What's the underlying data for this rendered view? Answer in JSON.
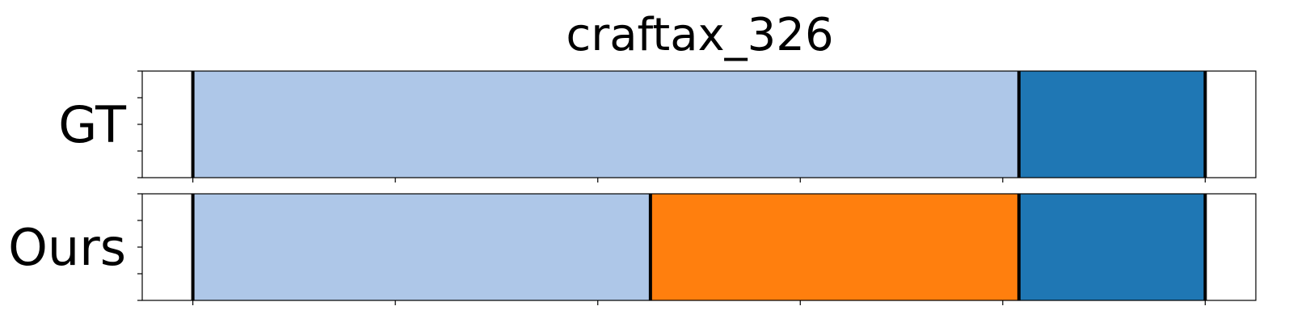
{
  "chart_data": {
    "type": "segmentation-timeline",
    "title": "craftax_326",
    "xlim": [
      0,
      5.5
    ],
    "xticks": [
      0.25,
      1.25,
      2.25,
      3.25,
      4.25,
      5.25
    ],
    "show_tick_labels": false,
    "grid": false,
    "legend": "none",
    "rows": [
      {
        "label": "GT",
        "segments": [
          {
            "start": 0.25,
            "end": 4.33,
            "color": "#aec7e8"
          },
          {
            "start": 4.33,
            "end": 5.25,
            "color": "#1f77b4"
          }
        ],
        "boundaries": [
          0.25,
          4.33,
          5.25
        ]
      },
      {
        "label": "Ours",
        "segments": [
          {
            "start": 0.25,
            "end": 2.51,
            "color": "#aec7e8"
          },
          {
            "start": 2.51,
            "end": 4.33,
            "color": "#ff7f0e"
          },
          {
            "start": 4.33,
            "end": 5.25,
            "color": "#1f77b4"
          }
        ],
        "boundaries": [
          0.25,
          2.51,
          4.33,
          5.25
        ]
      }
    ]
  }
}
